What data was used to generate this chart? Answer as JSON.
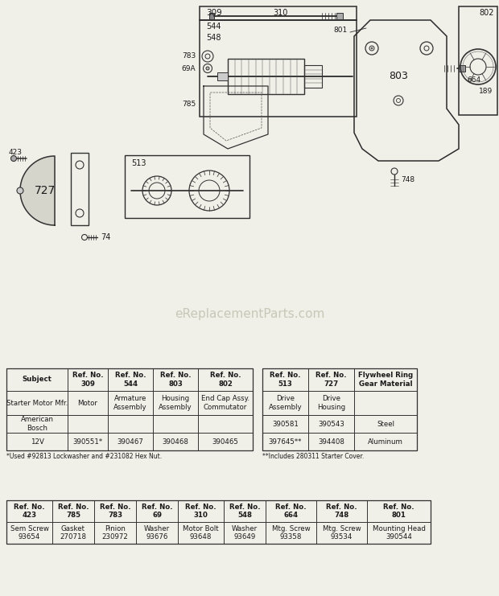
{
  "bg_color": "#f0efe8",
  "watermark": "eReplacementParts.com",
  "t1_headers": [
    "Subject",
    "Ref. No.\n309",
    "Ref. No.\n544",
    "Ref. No.\n803",
    "Ref. No.\n802"
  ],
  "t1_row1": [
    "Starter Motor Mfr.",
    "Motor",
    "Armature\nAssembly",
    "Housing\nAssembly",
    "End Cap Assy.\nCommutator"
  ],
  "t1_row2": [
    "American\nBosch",
    "",
    "",
    "",
    ""
  ],
  "t1_row3": [
    "12V",
    "390551*",
    "390467",
    "390468",
    "390465"
  ],
  "t1_footnote": "*Used #92813 Lockwasher and #231082 Hex Nut.",
  "t2_headers": [
    "Ref. No.\n513",
    "Ref. No.\n727",
    "Flywheel Ring\nGear Material"
  ],
  "t2_row1": [
    "Drive\nAssembly",
    "Drive\nHousing",
    ""
  ],
  "t2_row2": [
    "390581",
    "390543",
    "Steel"
  ],
  "t2_row3": [
    "397645**",
    "394408",
    "Aluminum"
  ],
  "t2_footnote": "**Includes 280311 Starter Cover.",
  "t3_headers": [
    "Ref. No.\n423",
    "Ref. No.\n785",
    "Ref. No.\n783",
    "Ref. No.\n69",
    "Ref. No.\n310",
    "Ref. No.\n548",
    "Ref. No.\n664",
    "Ref. No.\n748",
    "Ref. No.\n801"
  ],
  "t3_row1": [
    "Sem Screw\n93654",
    "Gasket\n270718",
    "Pinion\n230972",
    "Washer\n93676",
    "Motor Bolt\n93648",
    "Washer\n93649",
    "Mtg. Screw\n93358",
    "Mtg. Screw\n93534",
    "Mounting Head\n390544"
  ]
}
